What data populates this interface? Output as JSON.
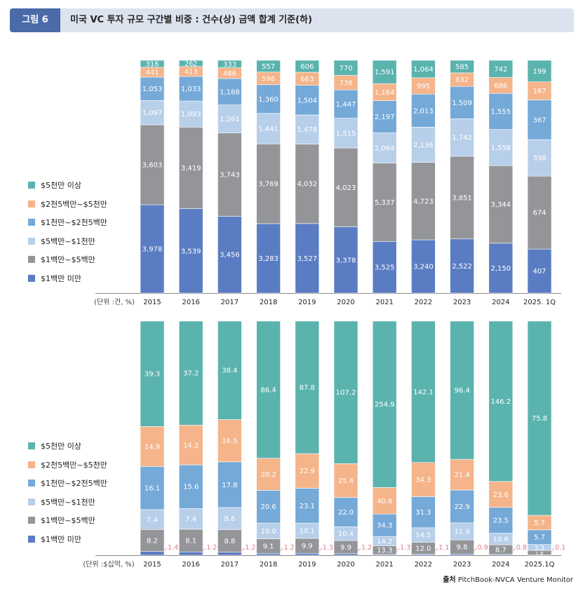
{
  "header": {
    "figure_label": "그림 6",
    "title": "미국 VC 투자 규모 구간별 비중 : 건수(상) 금액 합계 기준(하)"
  },
  "legend": [
    "$5천만 이상",
    "$2천5백만~$5천만",
    "$1천만~$2천5백만",
    "$5백만~$1천만",
    "$1백만~$5백만",
    "$1백만 미만"
  ],
  "colors": [
    "#5bb3ae",
    "#f5b48a",
    "#74a9d8",
    "#b8cfea",
    "#939598",
    "#5a7cc2"
  ],
  "source": {
    "label": "출처",
    "text": "PitchBook-NVCA Venture Monitor"
  },
  "chart_data": [
    {
      "type": "bar",
      "stacked": true,
      "normalized": true,
      "unit_label": "(단위 :건, %)",
      "categories": [
        "2015",
        "2016",
        "2017",
        "2018",
        "2019",
        "2020",
        "2021",
        "2022",
        "2023",
        "2024",
        "2025. 1Q"
      ],
      "series": [
        {
          "name": "$1백만 미만",
          "values": [
            3978,
            3539,
            3456,
            3283,
            3527,
            3378,
            3525,
            3240,
            2522,
            2150,
            407
          ],
          "labels": [
            "3,978",
            "3,539",
            "3,456",
            "3,283",
            "3,527",
            "3,378",
            "3,525",
            "3,240",
            "2,522",
            "2,150",
            "407"
          ]
        },
        {
          "name": "$1백만~$5백만",
          "values": [
            3603,
            3419,
            3743,
            3769,
            4032,
            4023,
            5337,
            4723,
            3851,
            3344,
            674
          ],
          "labels": [
            "3,603",
            "3,419",
            "3,743",
            "3,769",
            "4,032",
            "4,023",
            "5,337",
            "4,723",
            "3,851",
            "3,344",
            "674"
          ]
        },
        {
          "name": "$5백만~$1천만",
          "values": [
            1097,
            1093,
            1261,
            1441,
            1478,
            1515,
            2064,
            2136,
            1742,
            1558,
            338
          ],
          "labels": [
            "1,097",
            "1,093",
            "1,261",
            "1,441",
            "1,478",
            "1,515",
            "2,064",
            "2,136",
            "1,742",
            "1,558",
            "338"
          ]
        },
        {
          "name": "$1천만~$2천5백만",
          "values": [
            1053,
            1033,
            1188,
            1360,
            1504,
            1447,
            2197,
            2013,
            1509,
            1555,
            367
          ],
          "labels": [
            "1,053",
            "1,033",
            "1,188",
            "1,360",
            "1,504",
            "1,447",
            "2,197",
            "2,013",
            "1,509",
            "1,555",
            "367"
          ]
        },
        {
          "name": "$2천5백만~$5천만",
          "values": [
            441,
            413,
            486,
            596,
            663,
            738,
            1164,
            995,
            632,
            686,
            167
          ],
          "labels": [
            "441",
            "413",
            "486",
            "596",
            "663",
            "738",
            "1,164",
            "995",
            "632",
            "686",
            "167"
          ]
        },
        {
          "name": "$5천만 이상",
          "values": [
            316,
            262,
            333,
            557,
            606,
            770,
            1591,
            1064,
            585,
            742,
            199
          ],
          "labels": [
            "316",
            "262",
            "333",
            "557",
            "606",
            "770",
            "1,591",
            "1,064",
            "585",
            "742",
            "199"
          ]
        }
      ]
    },
    {
      "type": "bar",
      "stacked": true,
      "normalized": true,
      "unit_label": "(단위 :$십억, %)",
      "categories": [
        "2015",
        "2016",
        "2017",
        "2018",
        "2019",
        "2020",
        "2021",
        "2022",
        "2023",
        "2024",
        "2025.1Q"
      ],
      "series": [
        {
          "name": "$1백만 미만",
          "values": [
            1.4,
            1.2,
            1.2,
            1.2,
            1.3,
            1.2,
            1.3,
            1.1,
            0.9,
            0.8,
            0.1
          ],
          "labels": [
            "1.4",
            "1.2",
            "1.2",
            "1.2",
            "1.3",
            "1.2",
            "1.3",
            "1.1",
            "0.9",
            "0.8",
            "0.1"
          ]
        },
        {
          "name": "$1백만~$5백만",
          "values": [
            8.2,
            8.1,
            8.8,
            9.1,
            9.9,
            9.9,
            13.3,
            12.0,
            9.8,
            8.7,
            1.8
          ],
          "labels": [
            "8.2",
            "8.1",
            "8.8",
            "9.1",
            "9.9",
            "9.9",
            "13.3",
            "12.0",
            "9.8",
            "8.7",
            "1.8"
          ]
        },
        {
          "name": "$5백만~$1천만",
          "values": [
            7.4,
            7.4,
            8.6,
            10.0,
            10.1,
            10.4,
            14.2,
            14.5,
            11.9,
            10.6,
            2.3
          ],
          "labels": [
            "7.4",
            "7.4",
            "8.6",
            "10.0",
            "10.1",
            "10.4",
            "14.2",
            "14.5",
            "11.9",
            "10.6",
            "2.3"
          ]
        },
        {
          "name": "$1천만~$2천5백만",
          "values": [
            16.1,
            15.6,
            17.8,
            20.6,
            23.1,
            22.0,
            34.3,
            31.3,
            22.9,
            23.5,
            5.7
          ],
          "labels": [
            "16.1",
            "15.6",
            "17.8",
            "20.6",
            "23.1",
            "22.0",
            "34.3",
            "31.3",
            "22.9",
            "23.5",
            "5.7"
          ]
        },
        {
          "name": "$2천5백만~$5천만",
          "values": [
            14.9,
            14.2,
            16.5,
            20.2,
            22.9,
            25.4,
            40.6,
            34.3,
            21.4,
            23.6,
            5.7
          ],
          "labels": [
            "14.9",
            "14.2",
            "16.5",
            "20.2",
            "22.9",
            "25.4",
            "40.6",
            "34.3",
            "21.4",
            "23.6",
            "5.7"
          ]
        },
        {
          "name": "$5천만 이상",
          "values": [
            39.3,
            37.2,
            38.4,
            86.4,
            87.8,
            107.2,
            254.9,
            142.1,
            96.4,
            146.2,
            75.8
          ],
          "labels": [
            "39.3",
            "37.2",
            "38.4",
            "86.4",
            "87.8",
            "107.2",
            "254.9",
            "142.1",
            "96.4",
            "146.2",
            "75.8"
          ]
        }
      ]
    }
  ]
}
